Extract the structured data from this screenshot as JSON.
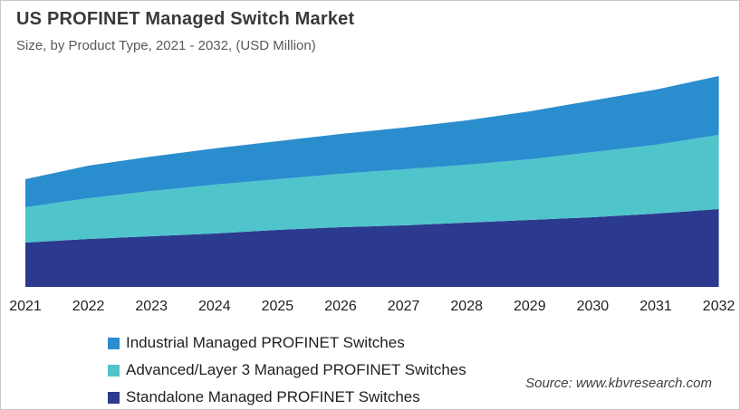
{
  "header": {
    "title": "US PROFINET Managed Switch Market",
    "subtitle": "Size, by Product Type, 2021 - 2032, (USD Million)"
  },
  "source": {
    "label": "Source: www.kbvresearch.com"
  },
  "legend": {
    "items": [
      {
        "label": "Industrial Managed PROFINET Switches",
        "color": "#2a8dce"
      },
      {
        "label": "Advanced/Layer 3 Managed PROFINET Switches",
        "color": "#4fc4cb"
      },
      {
        "label": "Standalone Managed PROFINET Switches",
        "color": "#2b3a8f"
      }
    ]
  },
  "chart_data": {
    "type": "area",
    "stacked": true,
    "stack_order": "bottom-to-top",
    "title": "US PROFINET Managed Switch Market",
    "subtitle": "Size, by Product Type, 2021 - 2032, (USD Million)",
    "xlabel": "",
    "ylabel": "USD Million",
    "y_axis_visible": false,
    "gridlines": false,
    "units": "relative estimate (chart shows no y-axis scale)",
    "legend_position": "bottom-left",
    "categories": [
      "2021",
      "2022",
      "2023",
      "2024",
      "2025",
      "2026",
      "2027",
      "2028",
      "2029",
      "2030",
      "2031",
      "2032"
    ],
    "series": [
      {
        "name": "Standalone Managed PROFINET Switches",
        "color": "#2b3a8f",
        "values": [
          49,
          53,
          56,
          59,
          63,
          66,
          68,
          71,
          74,
          77,
          81,
          86
        ]
      },
      {
        "name": "Advanced/Layer 3 Managed PROFINET Switches",
        "color": "#4fc4cb",
        "values": [
          39,
          45,
          50,
          54,
          56,
          59,
          62,
          64,
          67,
          72,
          76,
          82
        ]
      },
      {
        "name": "Industrial Managed PROFINET Switches",
        "color": "#2a8dce",
        "values": [
          31,
          36,
          38,
          40,
          42,
          44,
          46,
          49,
          53,
          57,
          61,
          65
        ]
      }
    ]
  }
}
